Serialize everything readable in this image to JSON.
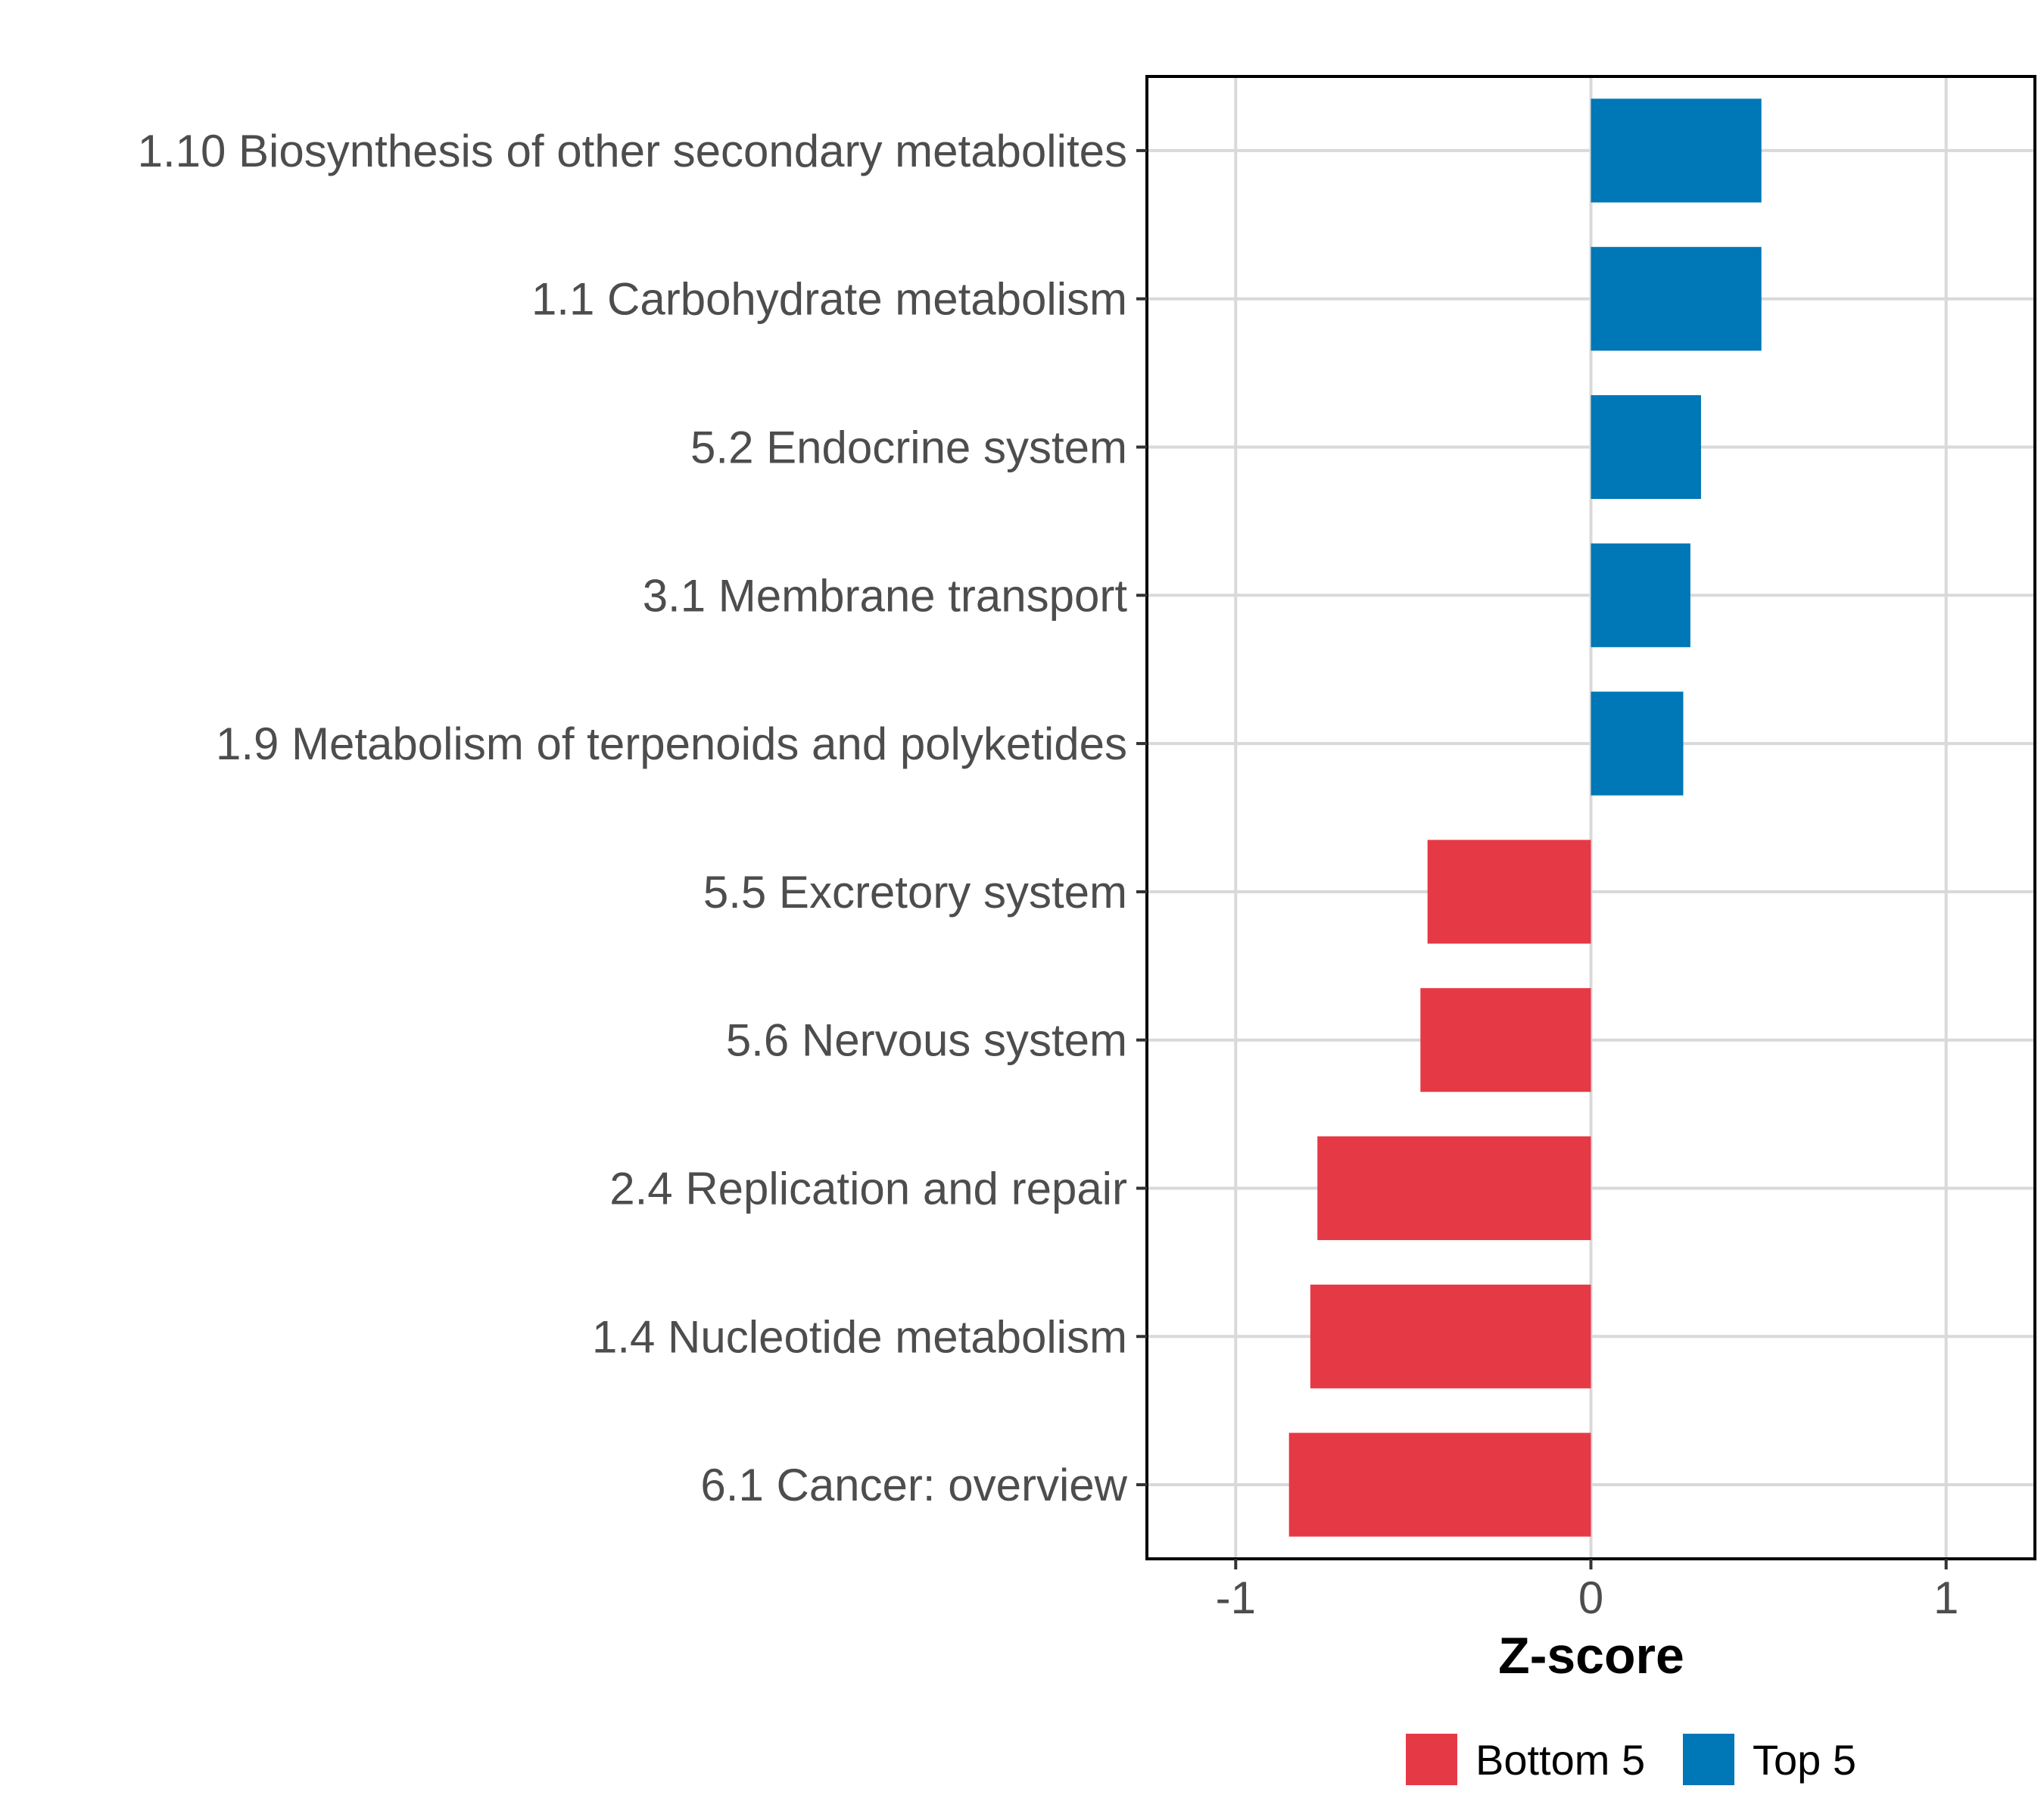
{
  "chart_data": {
    "type": "bar",
    "orientation": "horizontal",
    "title": "",
    "xlabel": "Z-score",
    "ylabel": "",
    "xlim": [
      -1.25,
      1.25
    ],
    "xticks": [
      -1,
      0,
      1
    ],
    "xtick_labels": [
      "-1",
      "0",
      "1"
    ],
    "grid": true,
    "categories": [
      "1.10 Biosynthesis of other secondary metabolites",
      "1.1 Carbohydrate metabolism",
      "5.2 Endocrine system",
      "3.1 Membrane transport",
      "1.9 Metabolism of terpenoids and polyketides",
      "5.5 Excretory system",
      "5.6 Nervous system",
      "2.4 Replication and repair",
      "1.4 Nucleotide metabolism",
      "6.1 Cancer: overview"
    ],
    "values": [
      0.48,
      0.48,
      0.31,
      0.28,
      0.26,
      -0.46,
      -0.48,
      -0.77,
      -0.79,
      -0.85
    ],
    "groups": [
      "Top 5",
      "Top 5",
      "Top 5",
      "Top 5",
      "Top 5",
      "Bottom 5",
      "Bottom 5",
      "Bottom 5",
      "Bottom 5",
      "Bottom 5"
    ],
    "legend": {
      "position": "bottom",
      "entries": [
        {
          "name": "Bottom 5",
          "color": "#e63946"
        },
        {
          "name": "Top 5",
          "color": "#0077b6"
        }
      ]
    }
  }
}
